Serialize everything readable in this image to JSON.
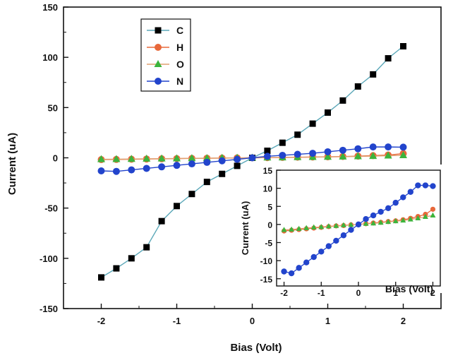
{
  "chart_data": [
    {
      "type": "line",
      "xlabel": "Bias (Volt)",
      "ylabel": "Current (uA)",
      "xlim": [
        -2.5,
        2.5
      ],
      "ylim": [
        -150,
        150
      ],
      "xticks": [
        -2,
        -1,
        0,
        1,
        2
      ],
      "yticks": [
        -150,
        -100,
        -50,
        0,
        50,
        100,
        150
      ],
      "legend": "top-left",
      "series": [
        {
          "name": "C",
          "marker": "square",
          "color": "#000000",
          "line": "#5aa7b8",
          "x": [
            -2,
            -1.8,
            -1.6,
            -1.4,
            -1.2,
            -1,
            -0.8,
            -0.6,
            -0.4,
            -0.2,
            0,
            0.2,
            0.4,
            0.6,
            0.8,
            1,
            1.2,
            1.4,
            1.6,
            1.8,
            2
          ],
          "y": [
            -119,
            -110,
            -100,
            -89,
            -63,
            -48,
            -36,
            -24,
            -16,
            -8,
            0,
            7,
            15,
            23,
            34,
            45,
            57,
            71,
            83,
            99,
            111
          ]
        },
        {
          "name": "H",
          "marker": "circle",
          "color": "#e8683a",
          "line": "#e8683a",
          "x": [
            -2,
            -1.8,
            -1.6,
            -1.4,
            -1.2,
            -1,
            -0.8,
            -0.6,
            -0.4,
            -0.2,
            0,
            0.2,
            0.4,
            0.6,
            0.8,
            1,
            1.2,
            1.4,
            1.6,
            1.8,
            2
          ],
          "y": [
            -1.8,
            -1.6,
            -1.4,
            -1.2,
            -1.0,
            -0.8,
            -0.6,
            -0.4,
            -0.3,
            -0.1,
            0,
            0.2,
            0.4,
            0.6,
            0.8,
            1.0,
            1.3,
            1.7,
            2.2,
            2.8,
            4.2
          ]
        },
        {
          "name": "O",
          "marker": "triangle",
          "color": "#3cb43c",
          "line": "#e0a070",
          "x": [
            -2,
            -1.8,
            -1.6,
            -1.4,
            -1.2,
            -1,
            -0.8,
            -0.6,
            -0.4,
            -0.2,
            0,
            0.2,
            0.4,
            0.6,
            0.8,
            1,
            1.2,
            1.4,
            1.6,
            1.8,
            2
          ],
          "y": [
            -1.5,
            -1.4,
            -1.2,
            -1.0,
            -0.8,
            -0.7,
            -0.5,
            -0.4,
            -0.2,
            -0.1,
            0,
            0.2,
            0.3,
            0.5,
            0.7,
            0.9,
            1.1,
            1.4,
            1.7,
            2.1,
            2.5
          ]
        },
        {
          "name": "N",
          "marker": "circle",
          "color": "#2244cc",
          "line": "#2244cc",
          "x": [
            -2,
            -1.8,
            -1.6,
            -1.4,
            -1.2,
            -1,
            -0.8,
            -0.6,
            -0.4,
            -0.2,
            0,
            0.2,
            0.4,
            0.6,
            0.8,
            1,
            1.2,
            1.4,
            1.6,
            1.8,
            2
          ],
          "y": [
            -13,
            -13.5,
            -12,
            -10.5,
            -9,
            -7.5,
            -6,
            -4.5,
            -3,
            -1.5,
            0,
            1.5,
            2.5,
            3.5,
            4.5,
            6,
            7.5,
            9,
            10.8,
            10.8,
            10.6
          ]
        }
      ]
    },
    {
      "type": "line",
      "inset": true,
      "xlabel": "Bias (Volt)",
      "ylabel": "Current (uA)",
      "xlim": [
        -2.2,
        2.2
      ],
      "ylim": [
        -17,
        15
      ],
      "xticks": [
        -2,
        -1,
        0,
        1,
        2
      ],
      "yticks": [
        -15,
        -10,
        -5,
        0,
        5,
        10,
        15
      ],
      "series_ref": [
        "H",
        "O",
        "N"
      ]
    }
  ],
  "legend_labels": [
    "C",
    "H",
    "O",
    "N"
  ],
  "tick_labels": {
    "main_x": [
      "-2",
      "-1",
      "0",
      "1",
      "2"
    ],
    "main_y": [
      "-150",
      "-100",
      "-50",
      "0",
      "50",
      "100",
      "150"
    ],
    "inset_x": [
      "-2",
      "-1",
      "0",
      "1",
      "2"
    ],
    "inset_y": [
      "-15",
      "-10",
      "-5",
      "0",
      "5",
      "10",
      "15"
    ]
  }
}
